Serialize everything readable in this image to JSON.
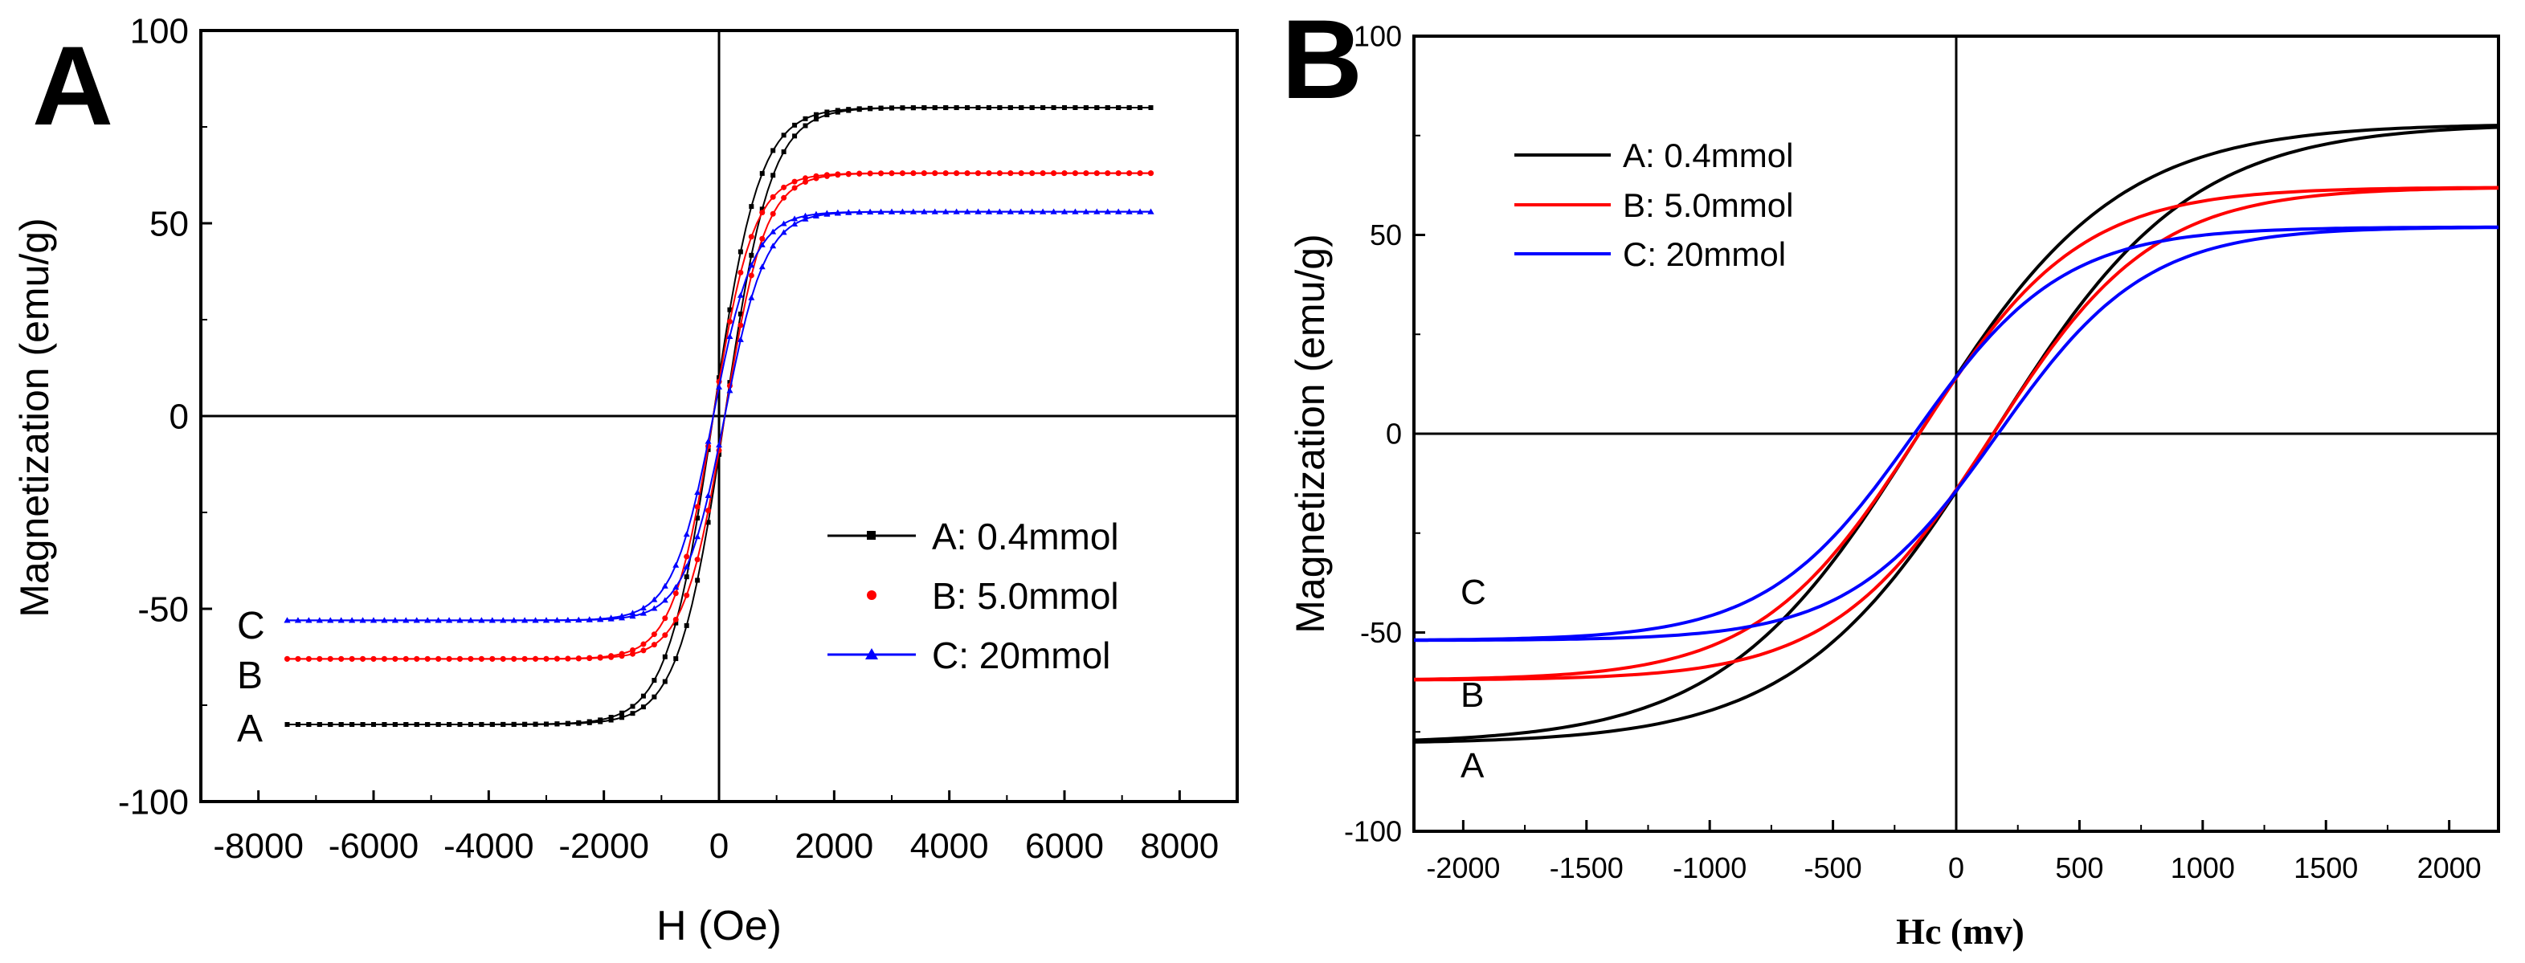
{
  "chart_data": [
    {
      "panel": "A",
      "type": "line",
      "title": "",
      "xlabel": "H (Oe)",
      "ylabel": "Magnetization (emu/g)",
      "xlim": [
        -9000,
        9000
      ],
      "ylim": [
        -100,
        100
      ],
      "x_ticks": [
        -8000,
        -6000,
        -4000,
        -2000,
        0,
        2000,
        4000,
        6000,
        8000
      ],
      "y_ticks": [
        -100,
        -50,
        0,
        50,
        100
      ],
      "x_tick_labels": [
        "-8000",
        "-6000",
        "-4000",
        "-2000",
        "0",
        "2000",
        "4000",
        "6000",
        "8000"
      ],
      "y_tick_labels": [
        "-100",
        "-50",
        "0",
        "50",
        "100"
      ],
      "legend_position": "lower-right",
      "series": [
        {
          "name": "A: 0.4mmol",
          "tag": "A",
          "color": "#000000",
          "marker": "square",
          "ms": 80,
          "H0": 800,
          "hc": 100
        },
        {
          "name": "B: 5.0mmol",
          "tag": "B",
          "color": "#ff0000",
          "marker": "circle",
          "ms": 63,
          "H0": 700,
          "hc": 100
        },
        {
          "name": "C: 20mmol",
          "tag": "C",
          "color": "#0000ff",
          "marker": "triangle",
          "ms": 53,
          "H0": 700,
          "hc": 100
        }
      ],
      "field_range": [
        -7500,
        7500
      ]
    },
    {
      "panel": "B",
      "type": "line",
      "title": "",
      "xlabel": "Hc (mv)",
      "ylabel": "Magnetization (emu/g)",
      "xlim": [
        -2200,
        2200
      ],
      "ylim": [
        -100,
        100
      ],
      "x_ticks": [
        -2000,
        -1500,
        -1000,
        -500,
        0,
        500,
        1000,
        1500,
        2000
      ],
      "y_ticks": [
        -100,
        -50,
        0,
        50,
        100
      ],
      "x_tick_labels": [
        "-2000",
        "-1500",
        "-1000",
        "-500",
        "0",
        "500",
        "1000",
        "1500",
        "2000"
      ],
      "y_tick_labels": [
        "-100",
        "-50",
        "0",
        "50",
        "100"
      ],
      "legend_position": "top-left",
      "series": [
        {
          "name": "A: 0.4mmol",
          "tag": "A",
          "color": "#000000",
          "ms": 78,
          "H0": 800,
          "hc": 150
        },
        {
          "name": "B: 5.0mmol",
          "tag": "B",
          "color": "#ff0000",
          "ms": 62,
          "H0": 650,
          "hc": 150
        },
        {
          "name": "C: 20mmol",
          "tag": "C",
          "color": "#0000ff",
          "ms": 52,
          "H0": 600,
          "hc": 170
        }
      ],
      "field_range": [
        -2200,
        2200
      ]
    }
  ]
}
